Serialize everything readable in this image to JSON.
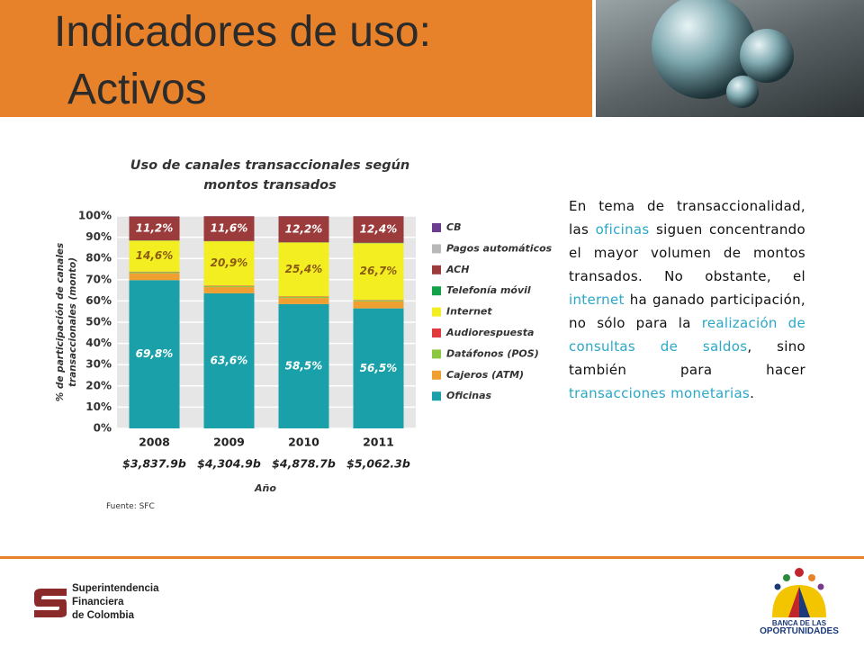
{
  "slide": {
    "title_line1": "Indicadores de uso:",
    "title_line2": "Activos",
    "paragraph": [
      "En tema de transaccionalidad, las ",
      "oficinas",
      " siguen concentrando el mayor volumen de montos transados.  No obstante, el ",
      "internet",
      " ha ganado participación, no sólo para la ",
      "realización de consultas de saldos",
      ",  sino también para hacer ",
      "transacciones monetarias",
      "."
    ],
    "source": "Fuente: SFC",
    "logo_left": [
      "Superintendencia",
      "Financiera",
      "de Colombia"
    ],
    "logo_right": [
      "BANCA DE LAS",
      "OPORTUNIDADES"
    ]
  },
  "chart_data": {
    "type": "stacked_bar",
    "title": "Uso de canales transaccionales según montos transados",
    "xlabel": "Año",
    "ylabel": "% de participación de canales transaccionales (monto)",
    "categories": [
      "2008",
      "2009",
      "2010",
      "2011"
    ],
    "category_sublabels": [
      "$3,837.9b",
      "$4,304.9b",
      "$4,878.7b",
      "$5,062.3b"
    ],
    "ylim": [
      0,
      100
    ],
    "yticks": [
      {
        "value": 0,
        "label": "0%"
      },
      {
        "value": 10,
        "label": "10%"
      },
      {
        "value": 20,
        "label": "20%"
      },
      {
        "value": 30,
        "label": "30%"
      },
      {
        "value": 40,
        "label": "40%"
      },
      {
        "value": 50,
        "label": "50%"
      },
      {
        "value": 60,
        "label": "60%"
      },
      {
        "value": 70,
        "label": "70%"
      },
      {
        "value": 80,
        "label": "80%"
      },
      {
        "value": 90,
        "label": "90%"
      },
      {
        "value": 100,
        "label": "100%"
      }
    ],
    "grid": true,
    "legend": "right",
    "series": [
      {
        "name": "Oficinas",
        "color": "#1aa0a8",
        "values": [
          69.8,
          63.6,
          58.5,
          56.5
        ],
        "value_labels": [
          "69,8%",
          "63,6%",
          "58,5%",
          "56,5%"
        ]
      },
      {
        "name": "Cajeros (ATM)",
        "color": "#f0a030",
        "values": [
          3.2,
          2.9,
          2.9,
          3.3
        ]
      },
      {
        "name": "Datáfonos (POS)",
        "color": "#8dc63f",
        "values": [
          0.6,
          0.5,
          0.5,
          0.5
        ]
      },
      {
        "name": "Audiorespuesta",
        "color": "#e03a3e",
        "values": [
          0.2,
          0.2,
          0.2,
          0.2
        ]
      },
      {
        "name": "Internet",
        "color": "#f2ee22",
        "values": [
          14.6,
          20.9,
          25.4,
          26.7
        ],
        "value_labels": [
          "14,6%",
          "20,9%",
          "25,4%",
          "26,7%"
        ]
      },
      {
        "name": "Telefonía móvil",
        "color": "#13a14a",
        "values": [
          0.1,
          0.1,
          0.1,
          0.2
        ]
      },
      {
        "name": "ACH",
        "color": "#9b3b3b",
        "values": [
          11.2,
          11.6,
          12.2,
          12.4
        ],
        "value_labels": [
          "11,2%",
          "11,6%",
          "12,2%",
          "12,4%"
        ]
      },
      {
        "name": "Pagos automáticos",
        "color": "#b8b8b8",
        "values": [
          0.2,
          0.1,
          0.1,
          0.1
        ]
      },
      {
        "name": "CB",
        "color": "#6a3d8f",
        "values": [
          0.1,
          0.1,
          0.1,
          0.1
        ]
      }
    ]
  }
}
